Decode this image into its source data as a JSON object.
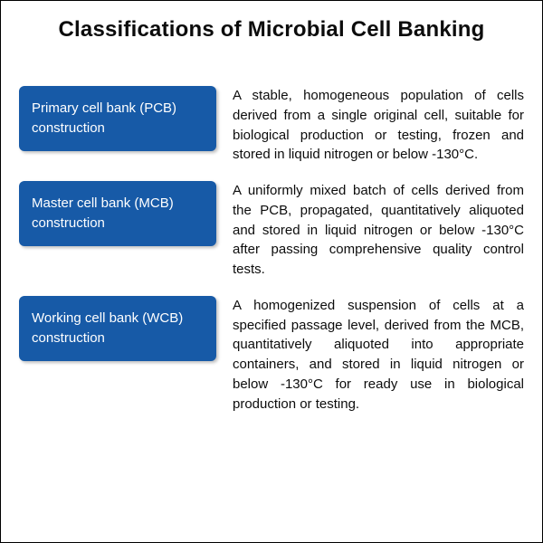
{
  "title": "Classifications of Microbial Cell Banking",
  "card_bg": "#175aa7",
  "card_fg": "#ffffff",
  "text_color": "#0c0c0c",
  "background_color": "#ffffff",
  "title_fontsize": 24,
  "body_fontsize": 15,
  "rows": [
    {
      "label": "Primary cell bank (PCB) construction",
      "description": "A stable, homogeneous population of cells derived from a single original cell, suitable for biological production or testing, frozen and stored in liquid nitrogen or below -130°C."
    },
    {
      "label": "Master cell bank (MCB) construction",
      "description": "A uniformly mixed batch of cells derived from the PCB, propagated, quantitatively aliquoted and stored in liquid nitrogen or below -130°C after passing comprehensive quality control tests."
    },
    {
      "label": "Working cell bank  (WCB) construction",
      "description": "A homogenized suspension of cells at a specified passage level, derived from the MCB, quantitatively aliquoted into appropriate containers, and stored in liquid nitrogen or below -130°C for ready use in biological production or testing."
    }
  ]
}
